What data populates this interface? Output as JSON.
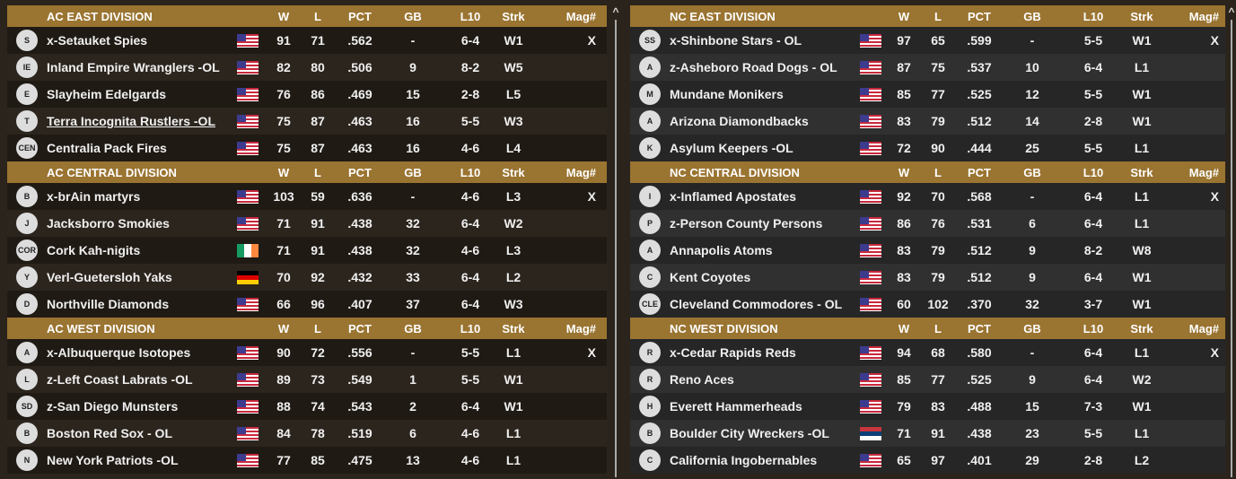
{
  "columns": [
    "W",
    "L",
    "PCT",
    "GB",
    "L10",
    "Strk",
    "Mag#"
  ],
  "colors": {
    "header": "#9a7431",
    "accent": "#b8892f"
  },
  "left": [
    {
      "division": "AC EAST DIVISION",
      "teams": [
        {
          "logo": "S",
          "name": "x-Setauket Spies",
          "flag": "us",
          "vals": [
            "91",
            "71",
            ".562",
            "-",
            "6-4",
            "W1",
            "X"
          ]
        },
        {
          "logo": "IE",
          "name": "Inland Empire Wranglers -OL",
          "flag": "us",
          "vals": [
            "82",
            "80",
            ".506",
            "9",
            "8-2",
            "W5",
            ""
          ]
        },
        {
          "logo": "E",
          "name": "Slayheim Edelgards",
          "flag": "us",
          "vals": [
            "76",
            "86",
            ".469",
            "15",
            "2-8",
            "L5",
            ""
          ]
        },
        {
          "logo": "T",
          "name": "Terra Incognita Rustlers  -OL",
          "flag": "us",
          "underline": true,
          "vals": [
            "75",
            "87",
            ".463",
            "16",
            "5-5",
            "W3",
            ""
          ]
        },
        {
          "logo": "CEN",
          "name": "Centralia Pack Fires",
          "flag": "us",
          "vals": [
            "75",
            "87",
            ".463",
            "16",
            "4-6",
            "L4",
            ""
          ]
        }
      ]
    },
    {
      "division": "AC CENTRAL DIVISION",
      "teams": [
        {
          "logo": "B",
          "name": "x-brAin martyrs",
          "flag": "us",
          "vals": [
            "103",
            "59",
            ".636",
            "-",
            "4-6",
            "L3",
            "X"
          ]
        },
        {
          "logo": "J",
          "name": "Jacksborro Smokies",
          "flag": "us",
          "vals": [
            "71",
            "91",
            ".438",
            "32",
            "6-4",
            "W2",
            ""
          ]
        },
        {
          "logo": "COR",
          "name": "Cork Kah-nigits",
          "flag": "ie",
          "vals": [
            "71",
            "91",
            ".438",
            "32",
            "4-6",
            "L3",
            ""
          ]
        },
        {
          "logo": "Y",
          "name": "Verl-Guetersloh Yaks",
          "flag": "de",
          "vals": [
            "70",
            "92",
            ".432",
            "33",
            "6-4",
            "L2",
            ""
          ]
        },
        {
          "logo": "D",
          "name": "Northville Diamonds",
          "flag": "us",
          "vals": [
            "66",
            "96",
            ".407",
            "37",
            "6-4",
            "W3",
            ""
          ]
        }
      ]
    },
    {
      "division": "AC WEST DIVISION",
      "teams": [
        {
          "logo": "A",
          "name": "x-Albuquerque Isotopes",
          "flag": "us",
          "vals": [
            "90",
            "72",
            ".556",
            "-",
            "5-5",
            "L1",
            "X"
          ]
        },
        {
          "logo": "L",
          "name": "z-Left Coast Labrats -OL",
          "flag": "us",
          "vals": [
            "89",
            "73",
            ".549",
            "1",
            "5-5",
            "W1",
            ""
          ]
        },
        {
          "logo": "SD",
          "name": "z-San Diego Munsters",
          "flag": "us",
          "vals": [
            "88",
            "74",
            ".543",
            "2",
            "6-4",
            "W1",
            ""
          ]
        },
        {
          "logo": "B",
          "name": "Boston Red Sox - OL",
          "flag": "us",
          "vals": [
            "84",
            "78",
            ".519",
            "6",
            "4-6",
            "L1",
            ""
          ]
        },
        {
          "logo": "N",
          "name": "New York Patriots -OL",
          "flag": "us",
          "vals": [
            "77",
            "85",
            ".475",
            "13",
            "4-6",
            "L1",
            ""
          ]
        }
      ]
    }
  ],
  "right": [
    {
      "division": "NC EAST DIVISION",
      "teams": [
        {
          "logo": "SS",
          "name": "x-Shinbone Stars - OL",
          "flag": "us",
          "vals": [
            "97",
            "65",
            ".599",
            "-",
            "5-5",
            "W1",
            "X"
          ]
        },
        {
          "logo": "A",
          "name": "z-Asheboro Road Dogs - OL",
          "flag": "us",
          "vals": [
            "87",
            "75",
            ".537",
            "10",
            "6-4",
            "L1",
            ""
          ]
        },
        {
          "logo": "M",
          "name": "Mundane Monikers",
          "flag": "us",
          "vals": [
            "85",
            "77",
            ".525",
            "12",
            "5-5",
            "W1",
            ""
          ]
        },
        {
          "logo": "A",
          "name": "Arizona Diamondbacks",
          "flag": "us",
          "vals": [
            "83",
            "79",
            ".512",
            "14",
            "2-8",
            "W1",
            ""
          ]
        },
        {
          "logo": "K",
          "name": "Asylum Keepers -OL",
          "flag": "us",
          "vals": [
            "72",
            "90",
            ".444",
            "25",
            "5-5",
            "L1",
            ""
          ]
        }
      ]
    },
    {
      "division": "NC CENTRAL DIVISION",
      "teams": [
        {
          "logo": "I",
          "name": "x-Inflamed Apostates",
          "flag": "us",
          "vals": [
            "92",
            "70",
            ".568",
            "-",
            "6-4",
            "L1",
            "X"
          ]
        },
        {
          "logo": "P",
          "name": "z-Person County Persons",
          "flag": "us",
          "vals": [
            "86",
            "76",
            ".531",
            "6",
            "6-4",
            "L1",
            ""
          ]
        },
        {
          "logo": "A",
          "name": "Annapolis Atoms",
          "flag": "us",
          "vals": [
            "83",
            "79",
            ".512",
            "9",
            "8-2",
            "W8",
            ""
          ]
        },
        {
          "logo": "C",
          "name": "Kent Coyotes",
          "flag": "us",
          "vals": [
            "83",
            "79",
            ".512",
            "9",
            "6-4",
            "W1",
            ""
          ]
        },
        {
          "logo": "CLE",
          "name": "Cleveland Commodores - OL",
          "flag": "us",
          "vals": [
            "60",
            "102",
            ".370",
            "32",
            "3-7",
            "W1",
            ""
          ]
        }
      ]
    },
    {
      "division": "NC WEST DIVISION",
      "teams": [
        {
          "logo": "R",
          "name": "x-Cedar Rapids Reds",
          "flag": "us",
          "vals": [
            "94",
            "68",
            ".580",
            "-",
            "6-4",
            "L1",
            "X"
          ]
        },
        {
          "logo": "R",
          "name": "Reno Aces",
          "flag": "us",
          "vals": [
            "85",
            "77",
            ".525",
            "9",
            "6-4",
            "W2",
            ""
          ]
        },
        {
          "logo": "H",
          "name": "Everett Hammerheads",
          "flag": "us",
          "vals": [
            "79",
            "83",
            ".488",
            "15",
            "7-3",
            "W1",
            ""
          ]
        },
        {
          "logo": "B",
          "name": "Boulder City Wreckers -OL",
          "flag": "rs",
          "vals": [
            "71",
            "91",
            ".438",
            "23",
            "5-5",
            "L1",
            ""
          ]
        },
        {
          "logo": "C",
          "name": "California Ingobernables",
          "flag": "us",
          "vals": [
            "65",
            "97",
            ".401",
            "29",
            "2-8",
            "L2",
            ""
          ]
        }
      ]
    }
  ]
}
